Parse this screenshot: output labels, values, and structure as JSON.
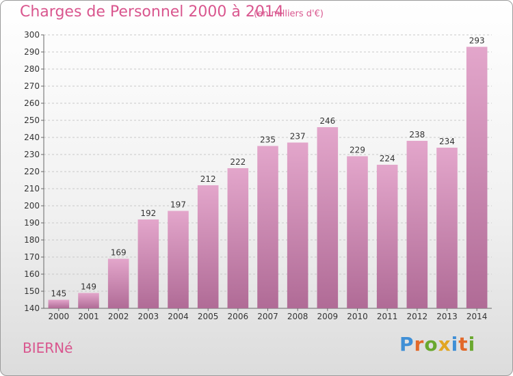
{
  "header": {
    "title": "Charges de Personnel 2000 à 2014",
    "subtitle": "(en milliers d'€)"
  },
  "footer": {
    "commune": "BIERNé",
    "logo_text": "Proxiti"
  },
  "colors": {
    "title": "#d9568e",
    "bar_top": "#e3a6cb",
    "bar_bottom": "#b06b96",
    "logo_letters": [
      "#3f8fd6",
      "#e2692a",
      "#6aa82f",
      "#e2a623",
      "#3f8fd6",
      "#e2692a",
      "#6aa82f"
    ]
  },
  "chart_data": {
    "type": "bar",
    "categories": [
      "2000",
      "2001",
      "2002",
      "2003",
      "2004",
      "2005",
      "2006",
      "2007",
      "2008",
      "2009",
      "2010",
      "2011",
      "2012",
      "2013",
      "2014"
    ],
    "values": [
      145,
      149,
      169,
      192,
      197,
      212,
      222,
      235,
      237,
      246,
      229,
      224,
      238,
      234,
      293
    ],
    "title": "Charges de Personnel 2000 à 2014",
    "subtitle": "(en milliers d'€)",
    "xlabel": "",
    "ylabel": "",
    "ylim": [
      140,
      300
    ],
    "yticks": [
      140,
      150,
      160,
      170,
      180,
      190,
      200,
      210,
      220,
      230,
      240,
      250,
      260,
      270,
      280,
      290,
      300
    ],
    "grid": true,
    "data_labels": true
  }
}
